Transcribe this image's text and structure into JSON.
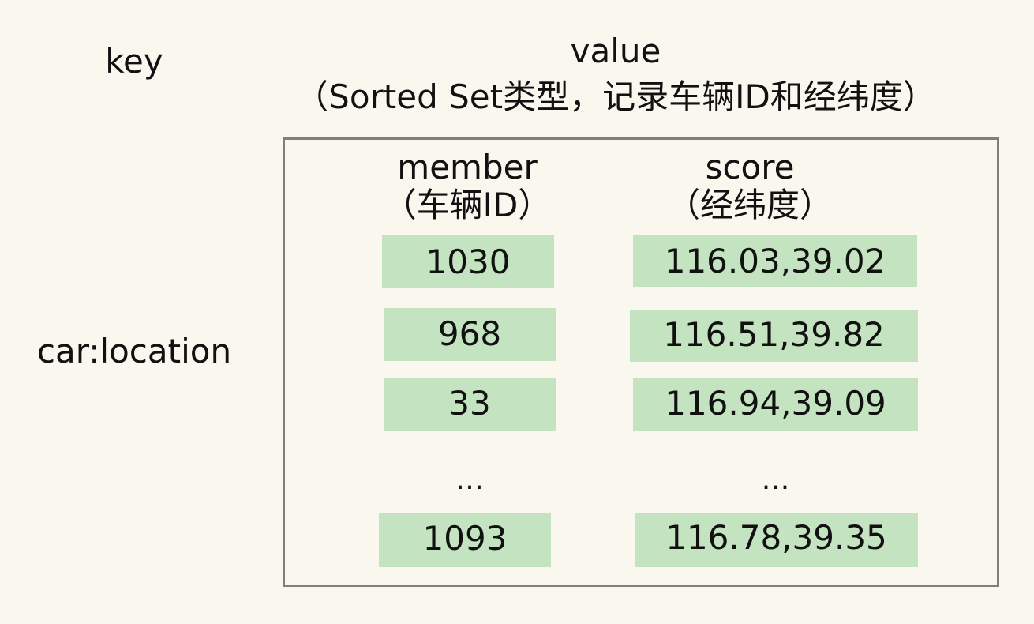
{
  "header": {
    "key_label": "key",
    "value_label": "value",
    "value_subtitle": "（Sorted Set类型，记录车辆ID和经纬度）"
  },
  "key_value": "car:location",
  "sorted_set": {
    "member_header": "member",
    "member_subheader": "（车辆ID）",
    "score_header": "score",
    "score_subheader": "（经纬度）",
    "rows": [
      {
        "member": "1030",
        "score": "116.03,39.02"
      },
      {
        "member": "968",
        "score": "116.51,39.82"
      },
      {
        "member": "33",
        "score": "116.94,39.09"
      },
      {
        "member": "…",
        "score": "…"
      },
      {
        "member": "1093",
        "score": "116.78,39.35"
      }
    ]
  },
  "colors": {
    "background": "#faf8ee",
    "cell_fill": "#c4e4c1",
    "box_border": "#7f7f7f",
    "text": "#111111"
  }
}
